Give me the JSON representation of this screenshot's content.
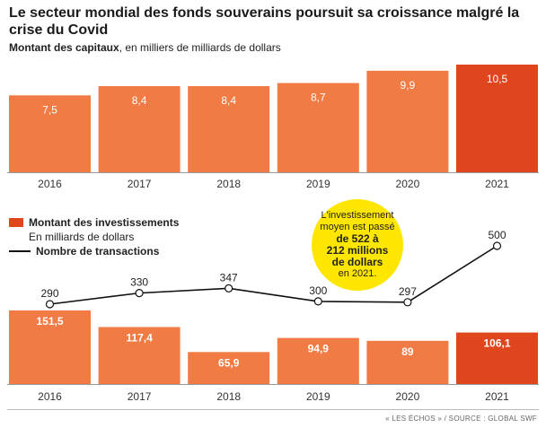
{
  "title": "Le secteur mondial des fonds souverains poursuit sa croissance malgré la crise du Covid",
  "subtitle_bold": "Montant des capitaux",
  "subtitle_rest": ", en milliers de milliards de dollars",
  "legend": {
    "invest_label": "Montant des investissements",
    "invest_unit": "En milliards de dollars",
    "transactions_label": "Nombre de transactions"
  },
  "bubble": {
    "line1": "L'investissement",
    "line2": "moyen est passé",
    "line3": "de 522 à",
    "line4": "212 millions",
    "line5": "de dollars",
    "line6": "en 2021."
  },
  "source": "« LES ÉCHOS » / SOURCE : GLOBAL SWF",
  "colors": {
    "bar": "#f07b45",
    "bar_highlight": "#e0461e",
    "bubble": "#ffe600",
    "line": "#111111"
  },
  "chart_data": [
    {
      "type": "bar",
      "categories": [
        "2016",
        "2017",
        "2018",
        "2019",
        "2020",
        "2021"
      ],
      "values": [
        7.5,
        8.4,
        8.4,
        8.7,
        9.9,
        10.5
      ],
      "labels": [
        "7,5",
        "8,4",
        "8,4",
        "8,7",
        "9,9",
        "10,5"
      ],
      "title": "Montant des capitaux, en milliers de milliards de dollars",
      "ylim": [
        0,
        10.5
      ],
      "highlight_index": 5
    },
    {
      "type": "bar",
      "categories": [
        "2016",
        "2017",
        "2018",
        "2019",
        "2020",
        "2021"
      ],
      "values": [
        151.5,
        117.4,
        65.9,
        94.9,
        89,
        106.1
      ],
      "labels": [
        "151,5",
        "117,4",
        "65,9",
        "94,9",
        "89",
        "106,1"
      ],
      "series_name": "Montant des investissements",
      "unit": "En milliards de dollars",
      "ylim": [
        0,
        151.5
      ],
      "highlight_index": 5
    },
    {
      "type": "line",
      "categories": [
        "2016",
        "2017",
        "2018",
        "2019",
        "2020",
        "2021"
      ],
      "values": [
        290,
        330,
        347,
        300,
        297,
        500
      ],
      "labels": [
        "290",
        "330",
        "347",
        "300",
        "297",
        "500"
      ],
      "series_name": "Nombre de transactions"
    }
  ]
}
